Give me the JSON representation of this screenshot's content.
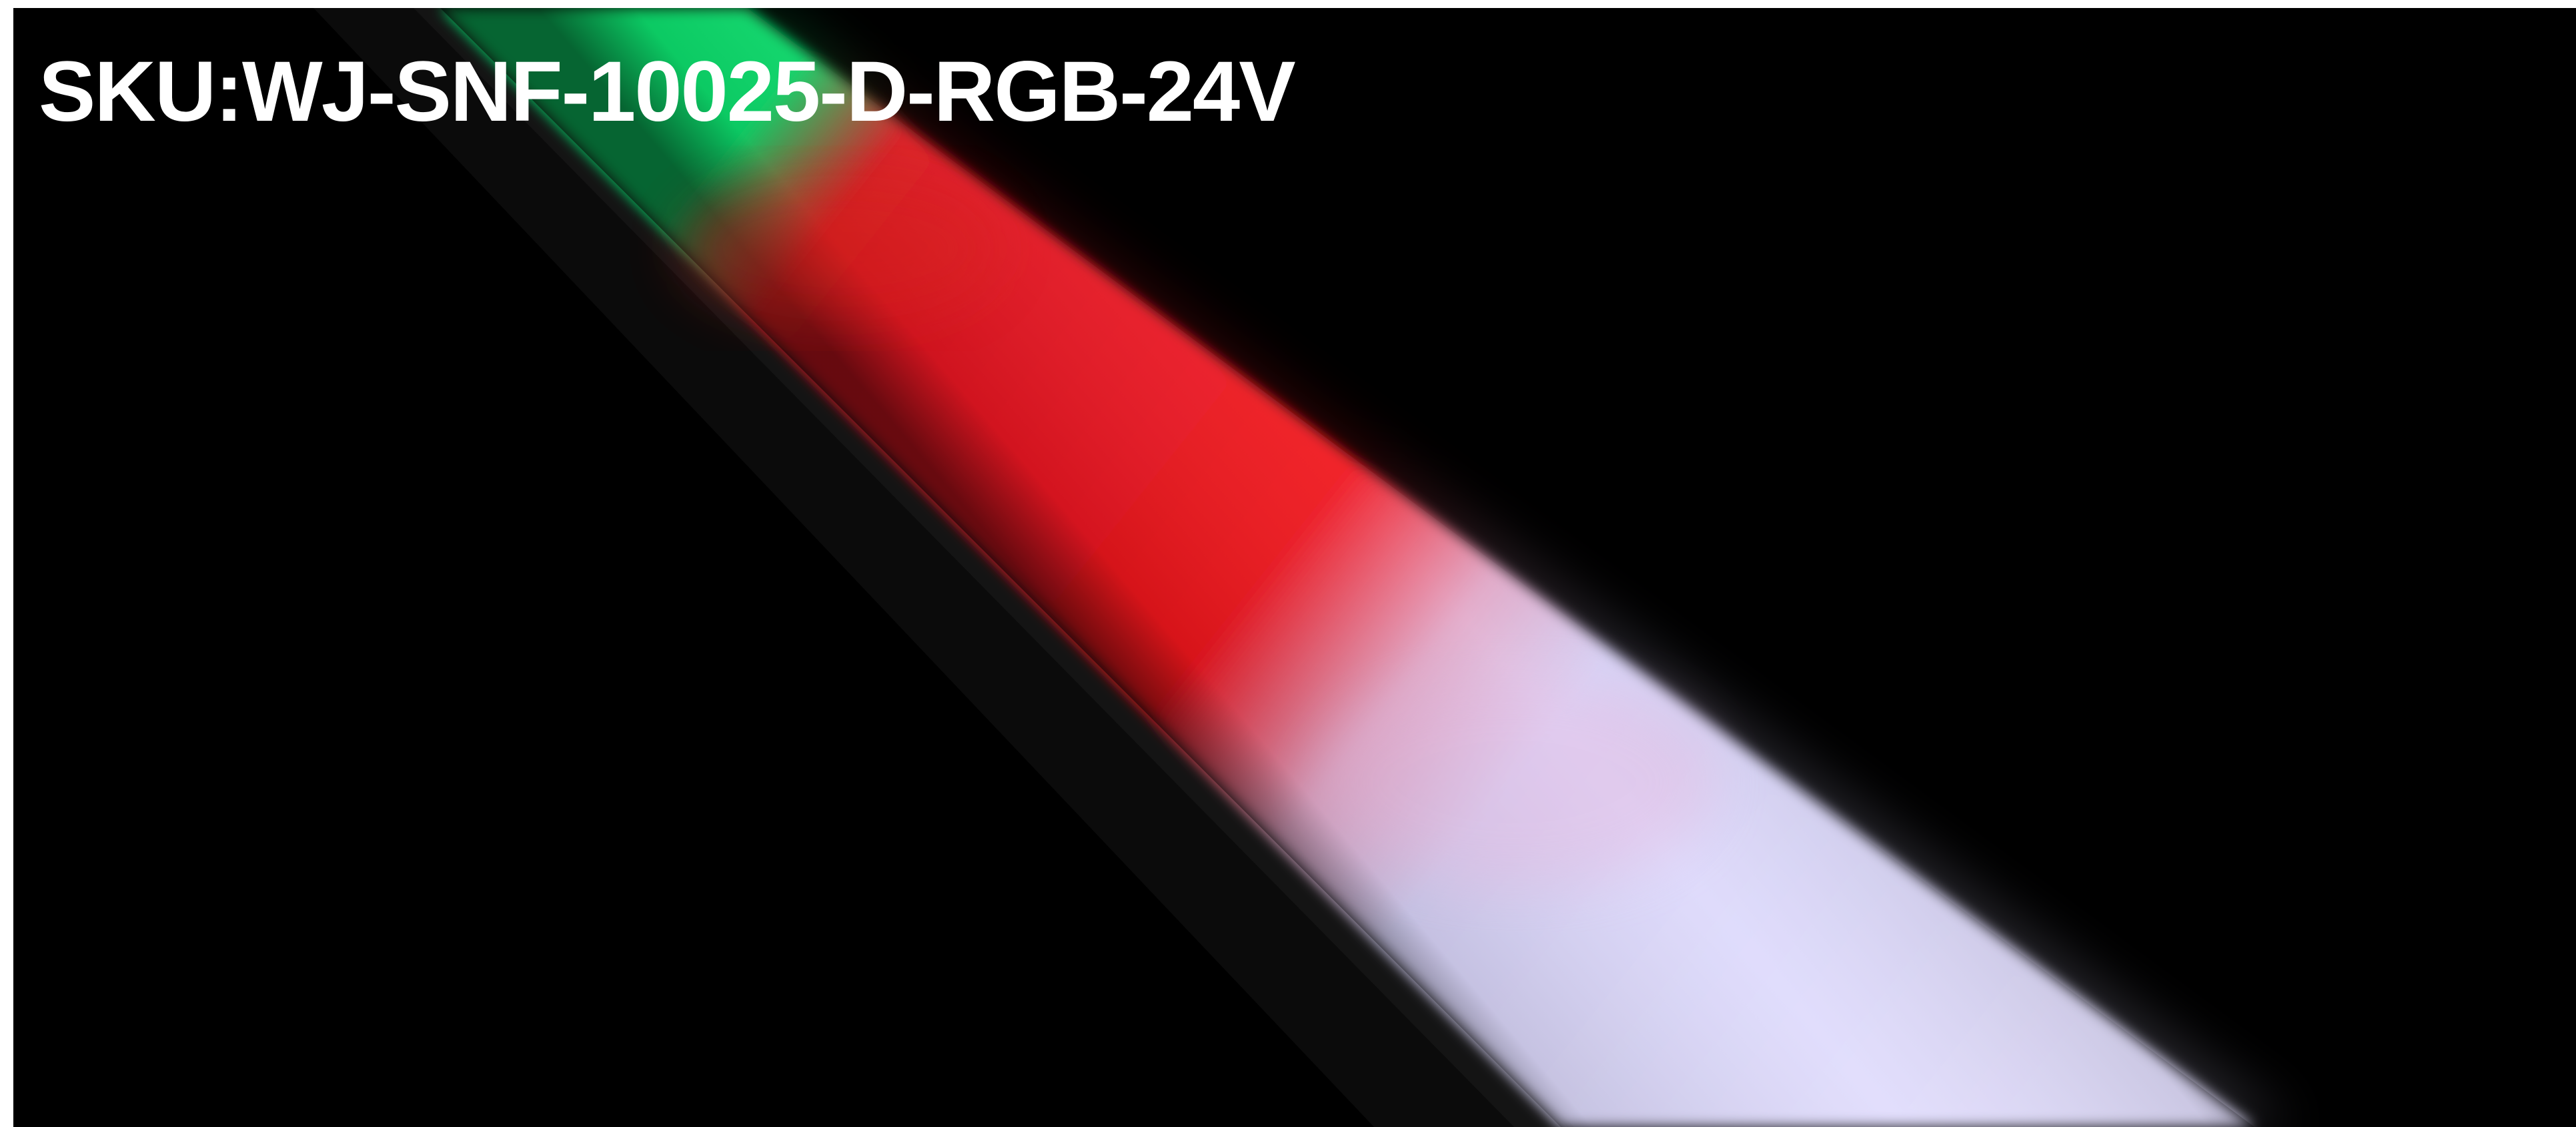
{
  "image": {
    "background_color": "#000000",
    "frame_color": "#ffffff",
    "caption": {
      "text": "SKU:WJ-SNF-10025-D-RGB-24V",
      "color": "#ffffff"
    },
    "light_tube": {
      "segments": [
        {
          "name": "green",
          "color": "#10e06e"
        },
        {
          "name": "red",
          "color": "#f0141e"
        },
        {
          "name": "white",
          "color": "#dad6fb"
        }
      ]
    }
  }
}
